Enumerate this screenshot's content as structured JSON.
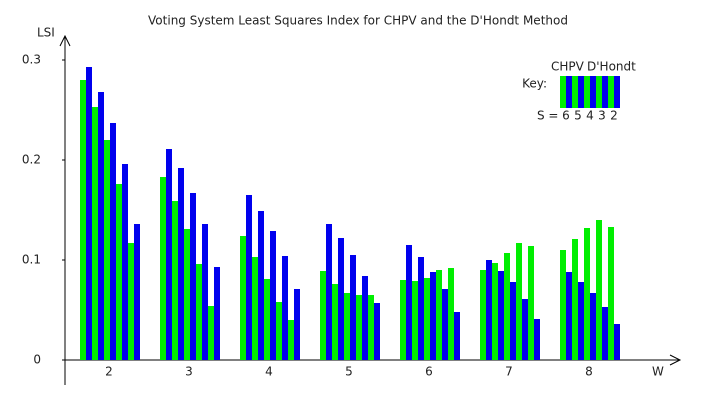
{
  "chart_data": {
    "type": "grouped-bar",
    "title": "Voting System Least Squares Index for CHPV and the D'Hondt Method",
    "y_label": "LSI",
    "x_label": "W",
    "categories": [
      "2",
      "3",
      "4",
      "5",
      "6",
      "7",
      "8"
    ],
    "subgroups": [
      "6",
      "5",
      "4",
      "3",
      "2"
    ],
    "subgroup_label": "S =",
    "key_label": "Key:",
    "series": [
      {
        "name": "CHPV",
        "color": "#00ee00",
        "values": [
          [
            0.28,
            0.253,
            0.22,
            0.176,
            0.117
          ],
          [
            0.183,
            0.159,
            0.131,
            0.096,
            0.054
          ],
          [
            0.124,
            0.103,
            0.081,
            0.058,
            0.04
          ],
          [
            0.089,
            0.076,
            0.067,
            0.065,
            0.065
          ],
          [
            0.08,
            0.079,
            0.082,
            0.09,
            0.092
          ],
          [
            0.09,
            0.097,
            0.107,
            0.117,
            0.114
          ],
          [
            0.11,
            0.121,
            0.132,
            0.14,
            0.133
          ]
        ]
      },
      {
        "name": "D'Hondt",
        "color": "#0000ee",
        "values": [
          [
            0.293,
            0.268,
            0.237,
            0.196,
            0.136
          ],
          [
            0.211,
            0.192,
            0.167,
            0.136,
            0.093
          ],
          [
            0.165,
            0.149,
            0.129,
            0.104,
            0.071
          ],
          [
            0.136,
            0.122,
            0.105,
            0.084,
            0.057
          ],
          [
            0.115,
            0.103,
            0.088,
            0.071,
            0.048
          ],
          [
            0.1,
            0.089,
            0.078,
            0.061,
            0.041
          ],
          [
            0.088,
            0.078,
            0.067,
            0.053,
            0.036
          ]
        ]
      }
    ],
    "ylim": [
      0,
      0.3
    ],
    "yticks": [
      0,
      0.1,
      0.2,
      0.3
    ]
  }
}
